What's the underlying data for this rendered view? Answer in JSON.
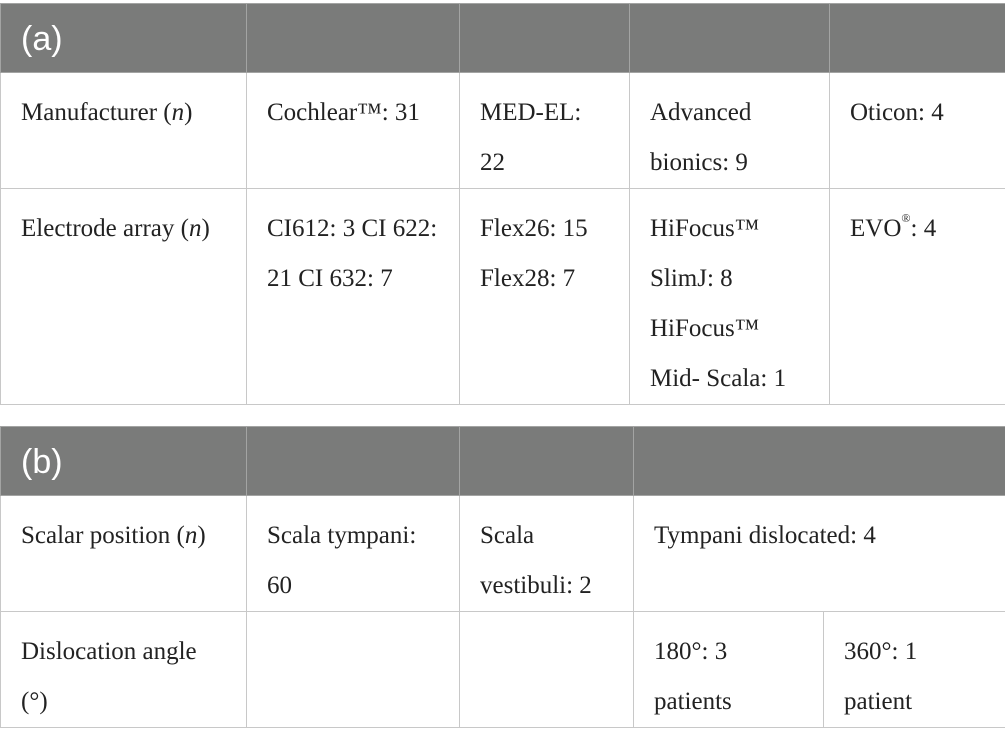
{
  "table_a": {
    "label": "(a)",
    "rows": [
      {
        "header_pre": "Manufacturer (",
        "header_var": "n",
        "header_post": ")",
        "cells": [
          "Cochlear™: 31",
          "MED-EL: 22",
          "Advanced bionics: 9",
          "Oticon: 4"
        ]
      },
      {
        "header_pre": "Electrode array (",
        "header_var": "n",
        "header_post": ")",
        "cells": [
          "CI612: 3 CI 622: 21 CI 632: 7",
          "Flex26: 15 Flex28: 7",
          "HiFocus™ SlimJ: 8 HiFocus™ Mid- Scala: 1"
        ],
        "last_cell_main": "EVO",
        "last_cell_sup": "®",
        "last_cell_tail": ": 4"
      }
    ]
  },
  "table_b": {
    "label": "(b)",
    "rows": [
      {
        "header_pre": "Scalar position (",
        "header_var": "n",
        "header_post": ")",
        "cells": [
          "Scala tympani: 60",
          "Scala vestibuli: 2",
          "Tympani dislocated: 4"
        ]
      },
      {
        "header": "Dislocation angle (°)",
        "cells": [
          "",
          "",
          "180°: 3 patients",
          "360°: 1 patient"
        ]
      }
    ]
  }
}
